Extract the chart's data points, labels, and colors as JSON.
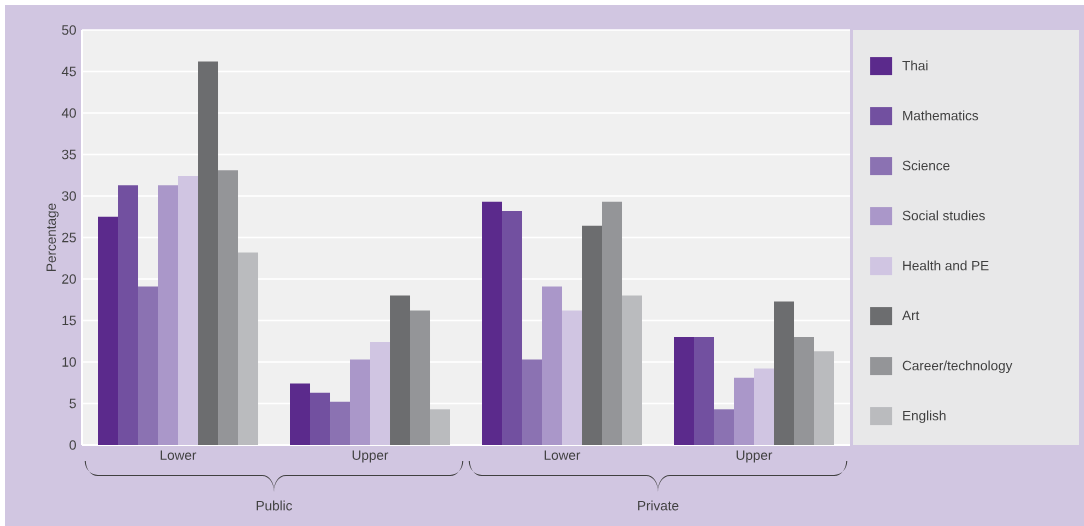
{
  "chart_data": {
    "type": "bar",
    "ylabel": "Percentage",
    "categories": [
      "Lower",
      "Upper",
      "Lower",
      "Upper"
    ],
    "annotations": [
      "Public",
      "Private"
    ],
    "ylim": [
      0,
      50
    ],
    "yticks": [
      0,
      5,
      10,
      15,
      20,
      25,
      30,
      35,
      40,
      45,
      50
    ],
    "grid": "y",
    "legend": "right",
    "series": [
      {
        "name": "Thai",
        "color": "#5b2a8c",
        "values": [
          27.5,
          7.4,
          29.3,
          13.0
        ]
      },
      {
        "name": "Mathematics",
        "color": "#7250a0",
        "values": [
          31.3,
          6.3,
          28.2,
          13.0
        ]
      },
      {
        "name": "Science",
        "color": "#8b72b2",
        "values": [
          19.1,
          5.2,
          10.3,
          4.3
        ]
      },
      {
        "name": "Social studies",
        "color": "#aa97c9",
        "values": [
          31.3,
          10.3,
          19.1,
          8.1
        ]
      },
      {
        "name": "Health and PE",
        "color": "#d0c5e2",
        "values": [
          32.4,
          12.4,
          16.2,
          9.2
        ]
      },
      {
        "name": "Art",
        "color": "#6c6d6f",
        "values": [
          46.2,
          18.0,
          26.4,
          17.3
        ]
      },
      {
        "name": "Career/technology",
        "color": "#949598",
        "values": [
          33.1,
          16.2,
          29.3,
          13.0
        ]
      },
      {
        "name": "English",
        "color": "#babbbe",
        "values": [
          23.2,
          4.3,
          18.0,
          11.3
        ]
      }
    ]
  }
}
